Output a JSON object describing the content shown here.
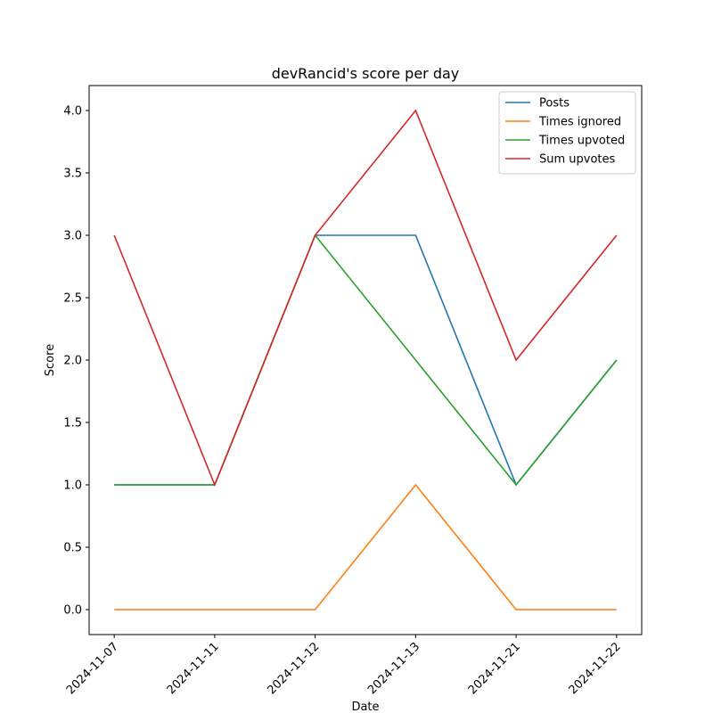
{
  "chart_data": {
    "type": "line",
    "title": "devRancid's score per day",
    "x_label": "Date",
    "y_label": "Score",
    "categories": [
      "2024-11-07",
      "2024-11-11",
      "2024-11-12",
      "2024-11-13",
      "2024-11-21",
      "2024-11-22"
    ],
    "series": [
      {
        "name": "Posts",
        "color": "#1f77b4",
        "values": [
          1,
          1,
          3,
          3,
          1,
          2
        ]
      },
      {
        "name": "Times ignored",
        "color": "#ff7f0e",
        "values": [
          0,
          0,
          0,
          1,
          0,
          0
        ]
      },
      {
        "name": "Times upvoted",
        "color": "#2ca02c",
        "values": [
          1,
          1,
          3,
          2,
          1,
          2
        ]
      },
      {
        "name": "Sum upvotes",
        "color": "#d62728",
        "values": [
          3,
          1,
          3,
          4,
          2,
          3
        ]
      }
    ],
    "ylim": [
      -0.2,
      4.2
    ],
    "yticks": [
      {
        "value": 0,
        "label": "0.0"
      },
      0.5,
      {
        "value": 1,
        "label": "1.0"
      },
      1.5,
      {
        "value": 2,
        "label": "2.0"
      },
      2.5,
      {
        "value": 3,
        "label": "3.0"
      },
      3.5,
      {
        "value": 4,
        "label": "4.0"
      }
    ],
    "legend": "upper right",
    "grid": false
  }
}
